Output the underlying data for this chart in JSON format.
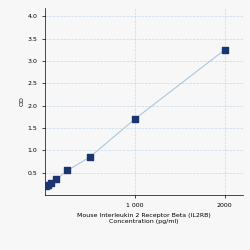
{
  "x_data": [
    15.6,
    31.25,
    62.5,
    125,
    250,
    500,
    1000,
    2000
  ],
  "y_data": [
    0.2,
    0.22,
    0.28,
    0.35,
    0.55,
    0.85,
    1.7,
    3.25
  ],
  "line_color": "#aac8e0",
  "marker_color": "#1a3570",
  "marker_size": 14,
  "xlabel_line1": "Mouse Interleukin 2 Receptor Beta (IL2RB)",
  "xlabel_line2": "Concentration (pg/ml)",
  "ylabel": "OD",
  "yticks": [
    0.5,
    1.0,
    1.5,
    2.0,
    2.5,
    3.0,
    3.5,
    4.0
  ],
  "xticks": [
    1000,
    2000
  ],
  "xticklabels": [
    "1 000",
    "2000"
  ],
  "xlim": [
    0,
    2200
  ],
  "ylim": [
    0.0,
    4.2
  ],
  "grid_color": "#c8d8e8",
  "bg_color": "#f7f7f7",
  "font_size": 4.5
}
